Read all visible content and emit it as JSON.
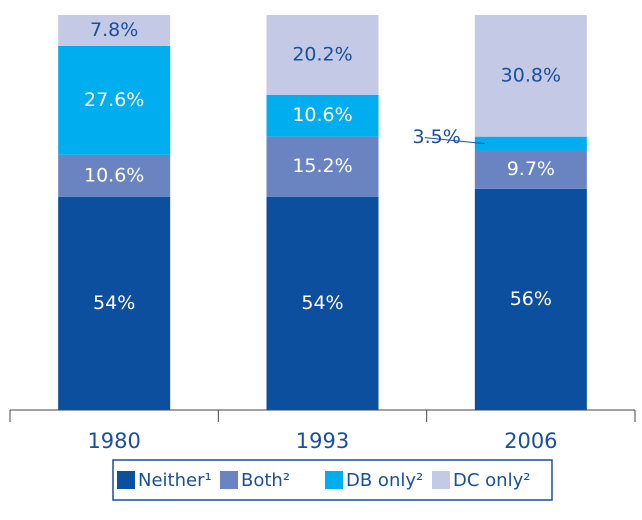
{
  "chart_data": {
    "type": "stacked_bar",
    "categories": [
      "1980",
      "1993",
      "2006"
    ],
    "series": [
      {
        "name": "Neither¹",
        "color": "#0b4f9e",
        "values": [
          54,
          54,
          56
        ],
        "value_labels": [
          "54%",
          "54%",
          "56%"
        ]
      },
      {
        "name": "Both²",
        "color": "#6a83c1",
        "values": [
          10.6,
          15.2,
          9.7
        ],
        "value_labels": [
          "10.6%",
          "15.2%",
          "9.7%"
        ]
      },
      {
        "name": "DB only²",
        "color": "#00aeef",
        "values": [
          27.6,
          10.6,
          3.5
        ],
        "value_labels": [
          "27.6%",
          "10.6%",
          "3.5%"
        ]
      },
      {
        "name": "DC only²",
        "color": "#c4cae6",
        "values": [
          7.8,
          20.2,
          30.8
        ],
        "value_labels": [
          "7.8%",
          "20.2%",
          "30.8%"
        ]
      }
    ],
    "ylim": [
      0,
      100
    ]
  }
}
